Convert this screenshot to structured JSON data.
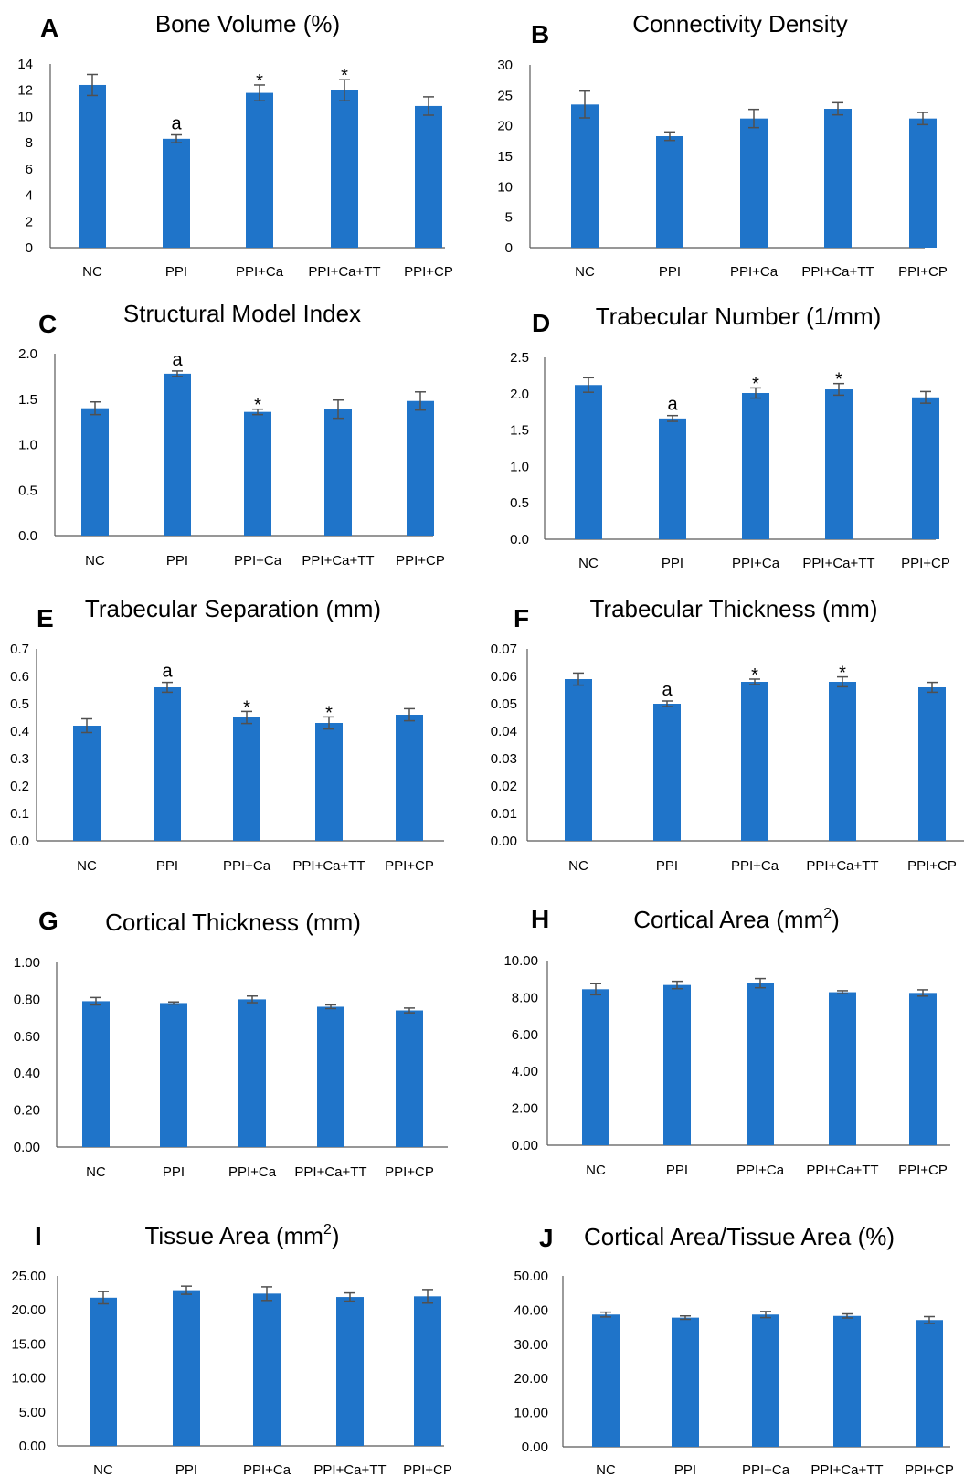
{
  "colors": {
    "bar": "#1f74c9",
    "axis": "#595959",
    "text": "#000000",
    "error": "#505050"
  },
  "categories": [
    "NC",
    "PPI",
    "PPI+Ca",
    "PPI+Ca+TT",
    "PPI+CP"
  ],
  "chart_data": [
    {
      "panel": "A",
      "type": "bar",
      "title": "Bone Volume (%)",
      "title_sup": "",
      "title_tail": "",
      "categories": [
        "NC",
        "PPI",
        "PPI+Ca",
        "PPI+Ca+TT",
        "PPI+CP"
      ],
      "values": [
        12.4,
        8.3,
        11.8,
        12.0,
        10.8
      ],
      "errors": [
        0.8,
        0.3,
        0.6,
        0.8,
        0.7
      ],
      "annotations": [
        "",
        "a",
        "*",
        "*",
        ""
      ],
      "ylim": [
        0,
        14
      ],
      "ticks": [
        0,
        2,
        4,
        6,
        8,
        10,
        12,
        14
      ],
      "tick_labels": [
        "0",
        "2",
        "4",
        "6",
        "8",
        "10",
        "12",
        "14"
      ]
    },
    {
      "panel": "B",
      "type": "bar",
      "title": "Connectivity Density",
      "title_sup": "",
      "title_tail": "",
      "categories": [
        "NC",
        "PPI",
        "PPI+Ca",
        "PPI+Ca+TT",
        "PPI+CP"
      ],
      "values": [
        23.5,
        18.3,
        21.2,
        22.8,
        21.2
      ],
      "errors": [
        2.2,
        0.7,
        1.5,
        1.0,
        1.0
      ],
      "annotations": [
        "",
        "",
        "",
        "",
        ""
      ],
      "ylim": [
        0,
        30
      ],
      "ticks": [
        0,
        5,
        10,
        15,
        20,
        25,
        30
      ],
      "tick_labels": [
        "0",
        "5",
        "10",
        "15",
        "20",
        "25",
        "30"
      ]
    },
    {
      "panel": "C",
      "type": "bar",
      "title": "Structural Model Index",
      "title_sup": "",
      "title_tail": "",
      "categories": [
        "NC",
        "PPI",
        "PPI+Ca",
        "PPI+Ca+TT",
        "PPI+CP"
      ],
      "values": [
        1.4,
        1.78,
        1.36,
        1.39,
        1.48
      ],
      "errors": [
        0.07,
        0.03,
        0.03,
        0.1,
        0.1
      ],
      "annotations": [
        "",
        "a",
        "*",
        "",
        ""
      ],
      "ylim": [
        0,
        2.0
      ],
      "ticks": [
        0,
        0.5,
        1.0,
        1.5,
        2.0
      ],
      "tick_labels": [
        "0.0",
        "0.5",
        "1.0",
        "1.5",
        "2.0"
      ]
    },
    {
      "panel": "D",
      "type": "bar",
      "title": "Trabecular Number (1/mm)",
      "title_sup": "",
      "title_tail": "",
      "categories": [
        "NC",
        "PPI",
        "PPI+Ca",
        "PPI+Ca+TT",
        "PPI+CP"
      ],
      "values": [
        2.12,
        1.66,
        2.01,
        2.06,
        1.95
      ],
      "errors": [
        0.1,
        0.04,
        0.07,
        0.08,
        0.08
      ],
      "annotations": [
        "",
        "a",
        "*",
        "*",
        ""
      ],
      "ylim": [
        0,
        2.5
      ],
      "ticks": [
        0,
        0.5,
        1.0,
        1.5,
        2.0,
        2.5
      ],
      "tick_labels": [
        "0.0",
        "0.5",
        "1.0",
        "1.5",
        "2.0",
        "2.5"
      ]
    },
    {
      "panel": "E",
      "type": "bar",
      "title": "Trabecular Separation (mm)",
      "title_sup": "",
      "title_tail": "",
      "categories": [
        "NC",
        "PPI",
        "PPI+Ca",
        "PPI+Ca+TT",
        "PPI+CP"
      ],
      "values": [
        0.42,
        0.56,
        0.45,
        0.43,
        0.46
      ],
      "errors": [
        0.025,
        0.018,
        0.022,
        0.022,
        0.022
      ],
      "annotations": [
        "",
        "a",
        "*",
        "*",
        ""
      ],
      "ylim": [
        0,
        0.7
      ],
      "ticks": [
        0,
        0.1,
        0.2,
        0.3,
        0.4,
        0.5,
        0.6,
        0.7
      ],
      "tick_labels": [
        "0.0",
        "0.1",
        "0.2",
        "0.3",
        "0.4",
        "0.5",
        "0.6",
        "0.7"
      ]
    },
    {
      "panel": "F",
      "type": "bar",
      "title": "Trabecular Thickness (mm)",
      "title_sup": "",
      "title_tail": "",
      "categories": [
        "NC",
        "PPI",
        "PPI+Ca",
        "PPI+Ca+TT",
        "PPI+CP"
      ],
      "values": [
        0.059,
        0.05,
        0.058,
        0.058,
        0.056
      ],
      "errors": [
        0.0022,
        0.001,
        0.001,
        0.0018,
        0.0018
      ],
      "annotations": [
        "",
        "a",
        "*",
        "*",
        ""
      ],
      "ylim": [
        0,
        0.07
      ],
      "ticks": [
        0,
        0.01,
        0.02,
        0.03,
        0.04,
        0.05,
        0.06,
        0.07
      ],
      "tick_labels": [
        "0.00",
        "0.01",
        "0.02",
        "0.03",
        "0.04",
        "0.05",
        "0.06",
        "0.07"
      ]
    },
    {
      "panel": "G",
      "type": "bar",
      "title": "Cortical Thickness (mm)",
      "title_sup": "",
      "title_tail": "",
      "categories": [
        "NC",
        "PPI",
        "PPI+Ca",
        "PPI+Ca+TT",
        "PPI+CP"
      ],
      "values": [
        0.79,
        0.78,
        0.8,
        0.76,
        0.74
      ],
      "errors": [
        0.02,
        0.006,
        0.018,
        0.01,
        0.013
      ],
      "annotations": [
        "",
        "",
        "",
        "",
        ""
      ],
      "ylim": [
        0,
        1.0
      ],
      "ticks": [
        0,
        0.2,
        0.4,
        0.6,
        0.8,
        1.0
      ],
      "tick_labels": [
        "0.00",
        "0.20",
        "0.40",
        "0.60",
        "0.80",
        "1.00"
      ]
    },
    {
      "panel": "H",
      "type": "bar",
      "title": "Cortical Area (mm",
      "title_sup": "2",
      "title_tail": ")",
      "categories": [
        "NC",
        "PPI",
        "PPI+Ca",
        "PPI+Ca+TT",
        "PPI+CP"
      ],
      "values": [
        8.45,
        8.68,
        8.78,
        8.29,
        8.25
      ],
      "errors": [
        0.3,
        0.2,
        0.25,
        0.08,
        0.17
      ],
      "annotations": [
        "",
        "",
        "",
        "",
        ""
      ],
      "ylim": [
        0,
        10
      ],
      "ticks": [
        0,
        2,
        4,
        6,
        8,
        10
      ],
      "tick_labels": [
        "0.00",
        "2.00",
        "4.00",
        "6.00",
        "8.00",
        "10.00"
      ]
    },
    {
      "panel": "I",
      "type": "bar",
      "title": "Tissue Area (mm",
      "title_sup": "2",
      "title_tail": ")",
      "categories": [
        "NC",
        "PPI",
        "PPI+Ca",
        "PPI+Ca+TT",
        "PPI+CP"
      ],
      "values": [
        21.8,
        22.9,
        22.4,
        21.9,
        22.0
      ],
      "errors": [
        0.9,
        0.6,
        1.0,
        0.6,
        1.0
      ],
      "annotations": [
        "",
        "",
        "",
        "",
        ""
      ],
      "ylim": [
        0,
        25
      ],
      "ticks": [
        0,
        5,
        10,
        15,
        20,
        25
      ],
      "tick_labels": [
        "0.00",
        "5.00",
        "10.00",
        "15.00",
        "20.00",
        "25.00"
      ]
    },
    {
      "panel": "J",
      "type": "bar",
      "title": "Cortical Area/Tissue Area (%)",
      "title_sup": "",
      "title_tail": "",
      "categories": [
        "NC",
        "PPI",
        "PPI+Ca",
        "PPI+Ca+TT",
        "PPI+CP"
      ],
      "values": [
        38.7,
        37.8,
        38.7,
        38.3,
        37.1
      ],
      "errors": [
        0.7,
        0.5,
        0.9,
        0.6,
        1.0
      ],
      "annotations": [
        "",
        "",
        "",
        "",
        ""
      ],
      "ylim": [
        0,
        50
      ],
      "ticks": [
        0,
        10,
        20,
        30,
        40,
        50
      ],
      "tick_labels": [
        "0.00",
        "10.00",
        "20.00",
        "30.00",
        "40.00",
        "50.00"
      ]
    }
  ]
}
